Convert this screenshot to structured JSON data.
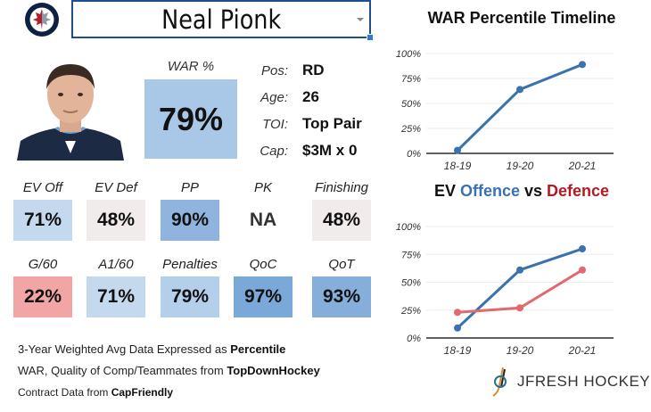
{
  "header": {
    "team_logo": "winnipeg-jets-logo",
    "player_select": {
      "value": "Neal Pionk"
    }
  },
  "profile": {
    "photo": "player-headshot",
    "war_label": "WAR %",
    "war_value": "79%",
    "info": [
      {
        "key": "Pos:",
        "value": "RD"
      },
      {
        "key": "Age:",
        "value": "26"
      },
      {
        "key": "TOI:",
        "value": "Top Pair"
      },
      {
        "key": "Cap:",
        "value": "$3M x 0"
      }
    ]
  },
  "stats": [
    {
      "label": "EV Off",
      "value": "71%",
      "color": "#c5d9ee"
    },
    {
      "label": "EV Def",
      "value": "48%",
      "color": "#f1ebec"
    },
    {
      "label": "PP",
      "value": "90%",
      "color": "#8fb5de"
    },
    {
      "label": "PK",
      "value": "NA",
      "color": "#ffffff"
    },
    {
      "label": "Finishing",
      "value": "48%",
      "color": "#f1ebec"
    },
    {
      "label": "G/60",
      "value": "22%",
      "color": "#f2a5a5"
    },
    {
      "label": "A1/60",
      "value": "71%",
      "color": "#c5d9ee"
    },
    {
      "label": "Penalties",
      "value": "79%",
      "color": "#b3cfea"
    },
    {
      "label": "QoC",
      "value": "97%",
      "color": "#7aa8d9"
    },
    {
      "label": "QoT",
      "value": "93%",
      "color": "#85aedb"
    }
  ],
  "notes": {
    "line1_text": "3-Year Weighted Avg Data Expressed as ",
    "line1_bold": "Percentile",
    "line2_text": "WAR, Quality of Comp/Teammates from ",
    "line2_bold": "TopDownHockey",
    "line3_text": "Contract Data from ",
    "line3_bold": "CapFriendly"
  },
  "brand": {
    "label": "JFRESH HOCKEY"
  },
  "colors": {
    "blue": "#3a72b0",
    "red": "#e06a6e",
    "dark_red": "#b01c24"
  },
  "chart_data": [
    {
      "type": "line",
      "title": "WAR Percentile Timeline",
      "categories": [
        "18-19",
        "19-20",
        "20-21"
      ],
      "series": [
        {
          "name": "WAR",
          "values": [
            3,
            64,
            89
          ],
          "color": "#3a72b0"
        }
      ],
      "yticks": [
        "0%",
        "25%",
        "50%",
        "75%",
        "100%"
      ],
      "ylim": [
        0,
        100
      ],
      "xlabel": "",
      "ylabel": "",
      "grid": true
    },
    {
      "type": "line",
      "title_parts": [
        {
          "text": "EV ",
          "color": "#111111"
        },
        {
          "text": "Offence",
          "color": "#3a72b0"
        },
        {
          "text": " vs ",
          "color": "#111111"
        },
        {
          "text": "Defence",
          "color": "#b01c24"
        }
      ],
      "categories": [
        "18-19",
        "19-20",
        "20-21"
      ],
      "series": [
        {
          "name": "Offence",
          "values": [
            9,
            61,
            80
          ],
          "color": "#3a72b0"
        },
        {
          "name": "Defence",
          "values": [
            23,
            27,
            61
          ],
          "color": "#e06a6e"
        }
      ],
      "yticks": [
        "0%",
        "25%",
        "50%",
        "75%",
        "100%"
      ],
      "ylim": [
        0,
        100
      ],
      "xlabel": "",
      "ylabel": "",
      "grid": true
    }
  ]
}
